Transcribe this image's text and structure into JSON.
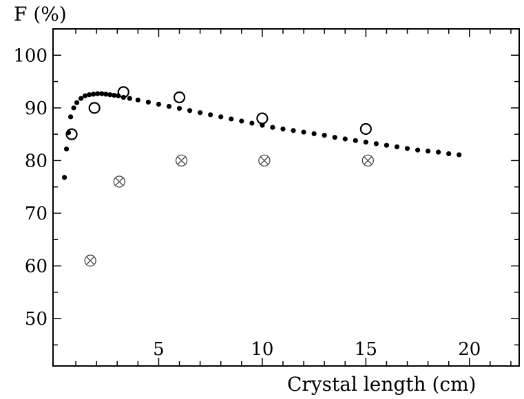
{
  "chart_data": {
    "type": "scatter",
    "title": "",
    "xlabel": "Crystal length (cm)",
    "ylabel": "F (%)",
    "xlim": [
      -0.1,
      22.4
    ],
    "ylim": [
      41.0,
      105.0
    ],
    "grid": false,
    "legend": "none",
    "x_ticks": [
      5,
      10,
      15,
      20
    ],
    "x_tick_labels": [
      "5",
      "10",
      "15",
      "20"
    ],
    "y_ticks": [
      50,
      60,
      70,
      80,
      90,
      100
    ],
    "y_tick_labels": [
      "50",
      "60",
      "70",
      "80",
      "90",
      "100"
    ],
    "series": [
      {
        "marker": "dot",
        "color": "#000000",
        "x": [
          0.45,
          0.55,
          0.65,
          0.75,
          0.9,
          1.05,
          1.25,
          1.45,
          1.65,
          1.85,
          2.05,
          2.25,
          2.45,
          2.65,
          2.85,
          3.05,
          3.3,
          3.6,
          4.0,
          4.5,
          5.0,
          5.5,
          6.0,
          6.5,
          7.0,
          7.5,
          8.0,
          8.5,
          9.0,
          9.5,
          10.0,
          10.5,
          11.0,
          11.5,
          12.0,
          12.5,
          13.0,
          13.5,
          14.0,
          14.5,
          15.0,
          15.5,
          16.0,
          16.5,
          17.0,
          17.5,
          18.0,
          18.5,
          19.0,
          19.5
        ],
        "y": [
          76.8,
          82.2,
          85.3,
          88.3,
          90.0,
          91.0,
          91.8,
          92.3,
          92.5,
          92.6,
          92.7,
          92.7,
          92.6,
          92.5,
          92.4,
          92.3,
          92.0,
          91.8,
          91.5,
          91.1,
          90.7,
          90.3,
          89.9,
          89.5,
          89.1,
          88.7,
          88.3,
          87.9,
          87.5,
          87.1,
          86.7,
          86.3,
          86.0,
          85.7,
          85.4,
          85.1,
          84.8,
          84.4,
          84.1,
          83.8,
          83.5,
          83.2,
          82.9,
          82.6,
          82.3,
          82.0,
          81.8,
          81.6,
          81.3,
          81.1
        ]
      },
      {
        "marker": "open-circle",
        "color": "#000000",
        "x": [
          0.8,
          1.9,
          3.3,
          6.0,
          10.0,
          15.0
        ],
        "y": [
          85,
          90,
          93,
          92,
          88,
          86
        ]
      },
      {
        "marker": "circle-cross",
        "color": "#444444",
        "x": [
          1.7,
          3.1,
          6.1,
          10.1,
          15.1
        ],
        "y": [
          61,
          76,
          80,
          80,
          80
        ]
      }
    ]
  }
}
